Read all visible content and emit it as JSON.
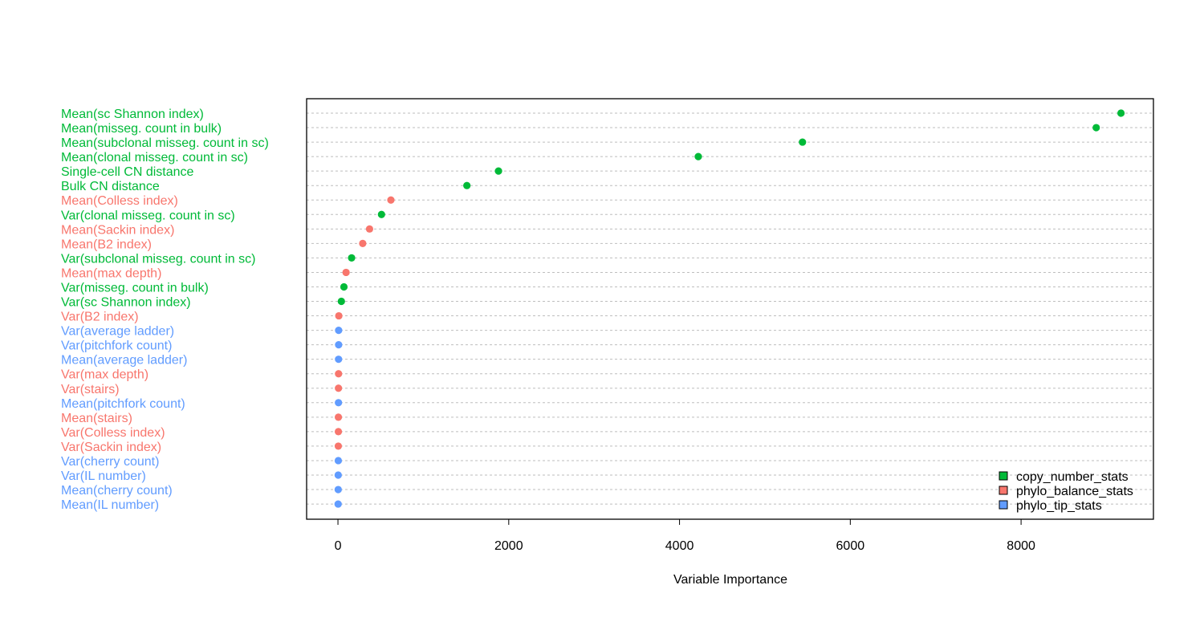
{
  "chart_data": {
    "type": "scatter",
    "title": "",
    "xlabel": "Variable Importance",
    "ylabel": "",
    "xlim": [
      -367,
      9550
    ],
    "xticks": [
      0,
      2000,
      4000,
      6000,
      8000
    ],
    "grid": "horizontal dashed",
    "legend_position": "bottom-right",
    "groups": [
      {
        "name": "copy_number_stats",
        "color": "#00BA38"
      },
      {
        "name": "phylo_balance_stats",
        "color": "#F8766D"
      },
      {
        "name": "phylo_tip_stats",
        "color": "#619CFF"
      }
    ],
    "points": [
      {
        "label": "Mean(sc Shannon index)",
        "value": 9170,
        "group": 0
      },
      {
        "label": "Mean(misseg. count in bulk)",
        "value": 8880,
        "group": 0
      },
      {
        "label": "Mean(subclonal misseg. count in sc)",
        "value": 5440,
        "group": 0
      },
      {
        "label": "Mean(clonal misseg. count in sc)",
        "value": 4220,
        "group": 0
      },
      {
        "label": "Single-cell CN distance",
        "value": 1880,
        "group": 0
      },
      {
        "label": "Bulk CN distance",
        "value": 1510,
        "group": 0
      },
      {
        "label": "Mean(Colless index)",
        "value": 620,
        "group": 1
      },
      {
        "label": "Var(clonal misseg. count in sc)",
        "value": 510,
        "group": 0
      },
      {
        "label": "Mean(Sackin index)",
        "value": 370,
        "group": 1
      },
      {
        "label": "Mean(B2 index)",
        "value": 290,
        "group": 1
      },
      {
        "label": "Var(subclonal misseg. count in sc)",
        "value": 160,
        "group": 0
      },
      {
        "label": "Mean(max depth)",
        "value": 95,
        "group": 1
      },
      {
        "label": "Var(misseg. count in bulk)",
        "value": 70,
        "group": 0
      },
      {
        "label": "Var(sc Shannon index)",
        "value": 40,
        "group": 0
      },
      {
        "label": "Var(B2 index)",
        "value": 10,
        "group": 1
      },
      {
        "label": "Var(average ladder)",
        "value": 8,
        "group": 2
      },
      {
        "label": "Var(pitchfork count)",
        "value": 8,
        "group": 2
      },
      {
        "label": "Mean(average ladder)",
        "value": 7,
        "group": 2
      },
      {
        "label": "Var(max depth)",
        "value": 7,
        "group": 1
      },
      {
        "label": "Var(stairs)",
        "value": 6,
        "group": 1
      },
      {
        "label": "Mean(pitchfork count)",
        "value": 6,
        "group": 2
      },
      {
        "label": "Mean(stairs)",
        "value": 5,
        "group": 1
      },
      {
        "label": "Var(Colless index)",
        "value": 5,
        "group": 1
      },
      {
        "label": "Var(Sackin index)",
        "value": 4,
        "group": 1
      },
      {
        "label": "Var(cherry count)",
        "value": 4,
        "group": 2
      },
      {
        "label": "Var(IL number)",
        "value": 3,
        "group": 2
      },
      {
        "label": "Mean(cherry count)",
        "value": 3,
        "group": 2
      },
      {
        "label": "Mean(IL number)",
        "value": 2,
        "group": 2
      }
    ]
  }
}
